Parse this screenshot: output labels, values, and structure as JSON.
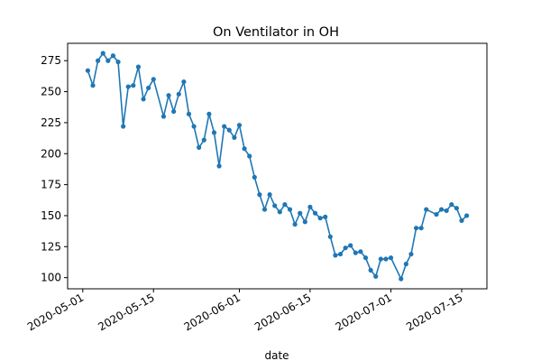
{
  "chart_data": {
    "type": "line",
    "title": "On Ventilator in OH",
    "xlabel": "date",
    "ylabel": "",
    "x_tick_labels": [
      "2020-05-01",
      "2020-05-15",
      "2020-06-01",
      "2020-06-15",
      "2020-07-01",
      "2020-07-15"
    ],
    "y_ticks": [
      100,
      125,
      150,
      175,
      200,
      225,
      250,
      275
    ],
    "xlim": [
      "2020-04-28",
      "2020-07-20"
    ],
    "ylim": [
      91,
      289
    ],
    "grid": false,
    "color": "#1f77b4",
    "marker": "circle",
    "series": [
      {
        "x": [
          "2020-05-02",
          "2020-05-03",
          "2020-05-04",
          "2020-05-05",
          "2020-05-06",
          "2020-05-07",
          "2020-05-08",
          "2020-05-09",
          "2020-05-10",
          "2020-05-11",
          "2020-05-12",
          "2020-05-13",
          "2020-05-14",
          "2020-05-15",
          "2020-05-17",
          "2020-05-18",
          "2020-05-19",
          "2020-05-20",
          "2020-05-21",
          "2020-05-22",
          "2020-05-23",
          "2020-05-24",
          "2020-05-25",
          "2020-05-26",
          "2020-05-27",
          "2020-05-28",
          "2020-05-29",
          "2020-05-30",
          "2020-05-31",
          "2020-06-01",
          "2020-06-02",
          "2020-06-03",
          "2020-06-04",
          "2020-06-05",
          "2020-06-06",
          "2020-06-07",
          "2020-06-08",
          "2020-06-09",
          "2020-06-10",
          "2020-06-11",
          "2020-06-12",
          "2020-06-13",
          "2020-06-14",
          "2020-06-15",
          "2020-06-16",
          "2020-06-17",
          "2020-06-18",
          "2020-06-19",
          "2020-06-20",
          "2020-06-21",
          "2020-06-22",
          "2020-06-23",
          "2020-06-24",
          "2020-06-25",
          "2020-06-26",
          "2020-06-27",
          "2020-06-28",
          "2020-06-29",
          "2020-06-30",
          "2020-07-01",
          "2020-07-03",
          "2020-07-04",
          "2020-07-05",
          "2020-07-06",
          "2020-07-07",
          "2020-07-08",
          "2020-07-10",
          "2020-07-11",
          "2020-07-12",
          "2020-07-13",
          "2020-07-14",
          "2020-07-15",
          "2020-07-16"
        ],
        "y": [
          267,
          255,
          275,
          281,
          275,
          279,
          274,
          222,
          254,
          255,
          270,
          244,
          253,
          260,
          230,
          247,
          234,
          248,
          258,
          232,
          222,
          205,
          211,
          232,
          217,
          190,
          222,
          219,
          213,
          223,
          204,
          198,
          181,
          167,
          155,
          167,
          158,
          153,
          159,
          155,
          143,
          152,
          145,
          157,
          152,
          148,
          149,
          133,
          118,
          119,
          124,
          126,
          120,
          121,
          116,
          106,
          101,
          115,
          115,
          116,
          99,
          111,
          119,
          140,
          140,
          155,
          151,
          155,
          154,
          159,
          156,
          146,
          150
        ]
      }
    ]
  }
}
